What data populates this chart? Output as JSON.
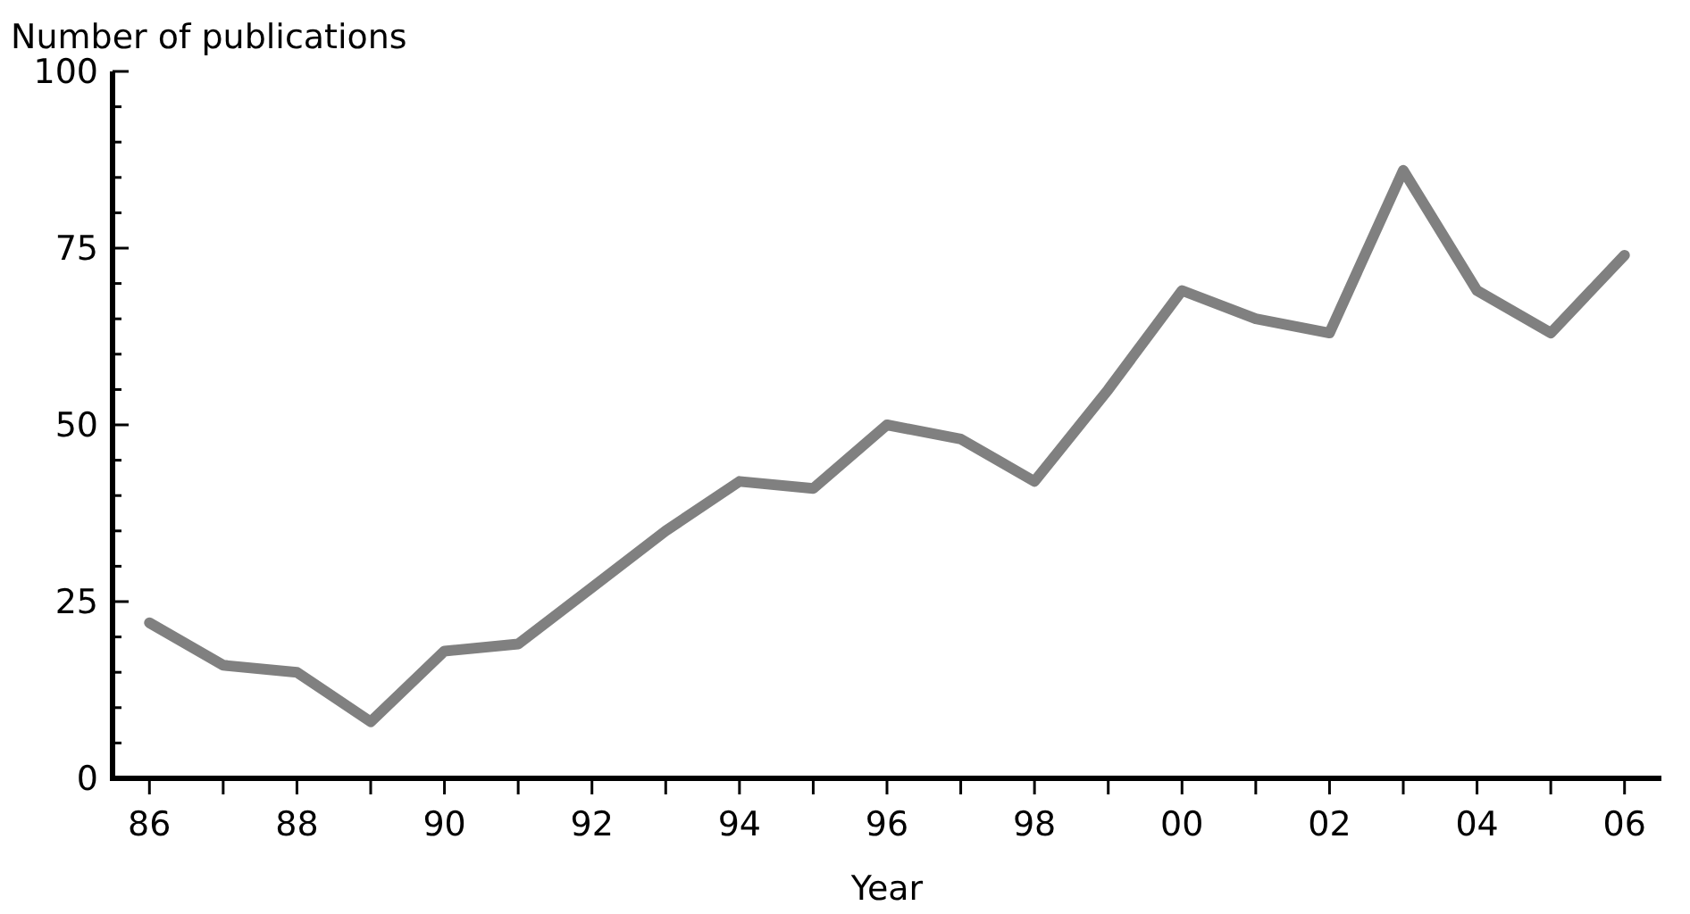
{
  "chart_data": {
    "type": "line",
    "ylabel": "Number of publications",
    "xlabel": "Year",
    "x": [
      1986,
      1987,
      1988,
      1989,
      1990,
      1991,
      1992,
      1993,
      1994,
      1995,
      1996,
      1997,
      1998,
      1999,
      2000,
      2001,
      2002,
      2003,
      2004,
      2005,
      2006
    ],
    "series": [
      {
        "color": "#808080",
        "values": [
          22,
          16,
          15,
          8,
          18,
          19,
          27,
          35,
          42,
          41,
          50,
          48,
          42,
          55,
          69,
          65,
          63,
          86,
          69,
          63,
          74
        ]
      }
    ],
    "xlim": [
      1985.5,
      2006.5
    ],
    "xticks": [
      {
        "value": 1986,
        "label": "86"
      },
      {
        "value": 1987,
        "label": null
      },
      {
        "value": 1988,
        "label": "88"
      },
      {
        "value": 1989,
        "label": null
      },
      {
        "value": 1990,
        "label": "90"
      },
      {
        "value": 1991,
        "label": null
      },
      {
        "value": 1992,
        "label": "92"
      },
      {
        "value": 1993,
        "label": null
      },
      {
        "value": 1994,
        "label": "94"
      },
      {
        "value": 1995,
        "label": null
      },
      {
        "value": 1996,
        "label": "96"
      },
      {
        "value": 1997,
        "label": null
      },
      {
        "value": 1998,
        "label": "98"
      },
      {
        "value": 1999,
        "label": null
      },
      {
        "value": 2000,
        "label": "00"
      },
      {
        "value": 2001,
        "label": null
      },
      {
        "value": 2002,
        "label": "02"
      },
      {
        "value": 2003,
        "label": null
      },
      {
        "value": 2004,
        "label": "04"
      },
      {
        "value": 2005,
        "label": null
      },
      {
        "value": 2006,
        "label": "06"
      }
    ],
    "ylim": [
      0,
      100
    ],
    "yticks": [
      0,
      {
        "value": 5,
        "label": null
      },
      {
        "value": 10,
        "label": null
      },
      {
        "value": 15,
        "label": null
      },
      {
        "value": 20,
        "label": null
      },
      25,
      {
        "value": 30,
        "label": null
      },
      {
        "value": 35,
        "label": null
      },
      {
        "value": 40,
        "label": null
      },
      {
        "value": 45,
        "label": null
      },
      50,
      {
        "value": 55,
        "label": null
      },
      {
        "value": 60,
        "label": null
      },
      {
        "value": 65,
        "label": null
      },
      {
        "value": 70,
        "label": null
      },
      75,
      {
        "value": 80,
        "label": null
      },
      {
        "value": 85,
        "label": null
      },
      {
        "value": 90,
        "label": null
      },
      {
        "value": 95,
        "label": null
      },
      100
    ],
    "grid": false,
    "marker": "none",
    "line_style": "solid"
  }
}
